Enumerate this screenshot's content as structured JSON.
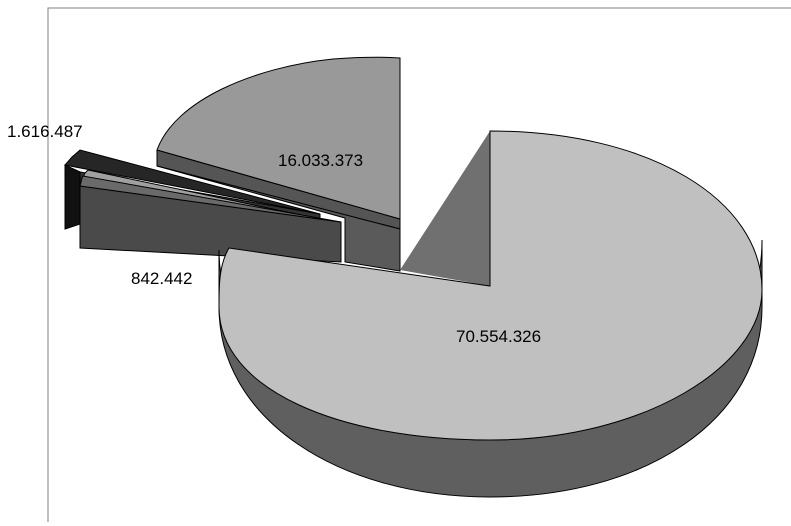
{
  "chart_data": {
    "type": "pie",
    "style": "3d-exploded",
    "title": "",
    "legend": "none",
    "slices": [
      {
        "label": "70.554.326",
        "value": 70554326,
        "color": "#c0c0c0"
      },
      {
        "label": "842.442",
        "value": 842442,
        "color": "#404040"
      },
      {
        "label": "1.616.487",
        "value": 1616487,
        "color": "#202020"
      },
      {
        "label": "16.033.373",
        "value": 16033373,
        "color": "#999999"
      }
    ],
    "small_slice_colors": [
      "#a0a0a0",
      "#606060"
    ]
  }
}
